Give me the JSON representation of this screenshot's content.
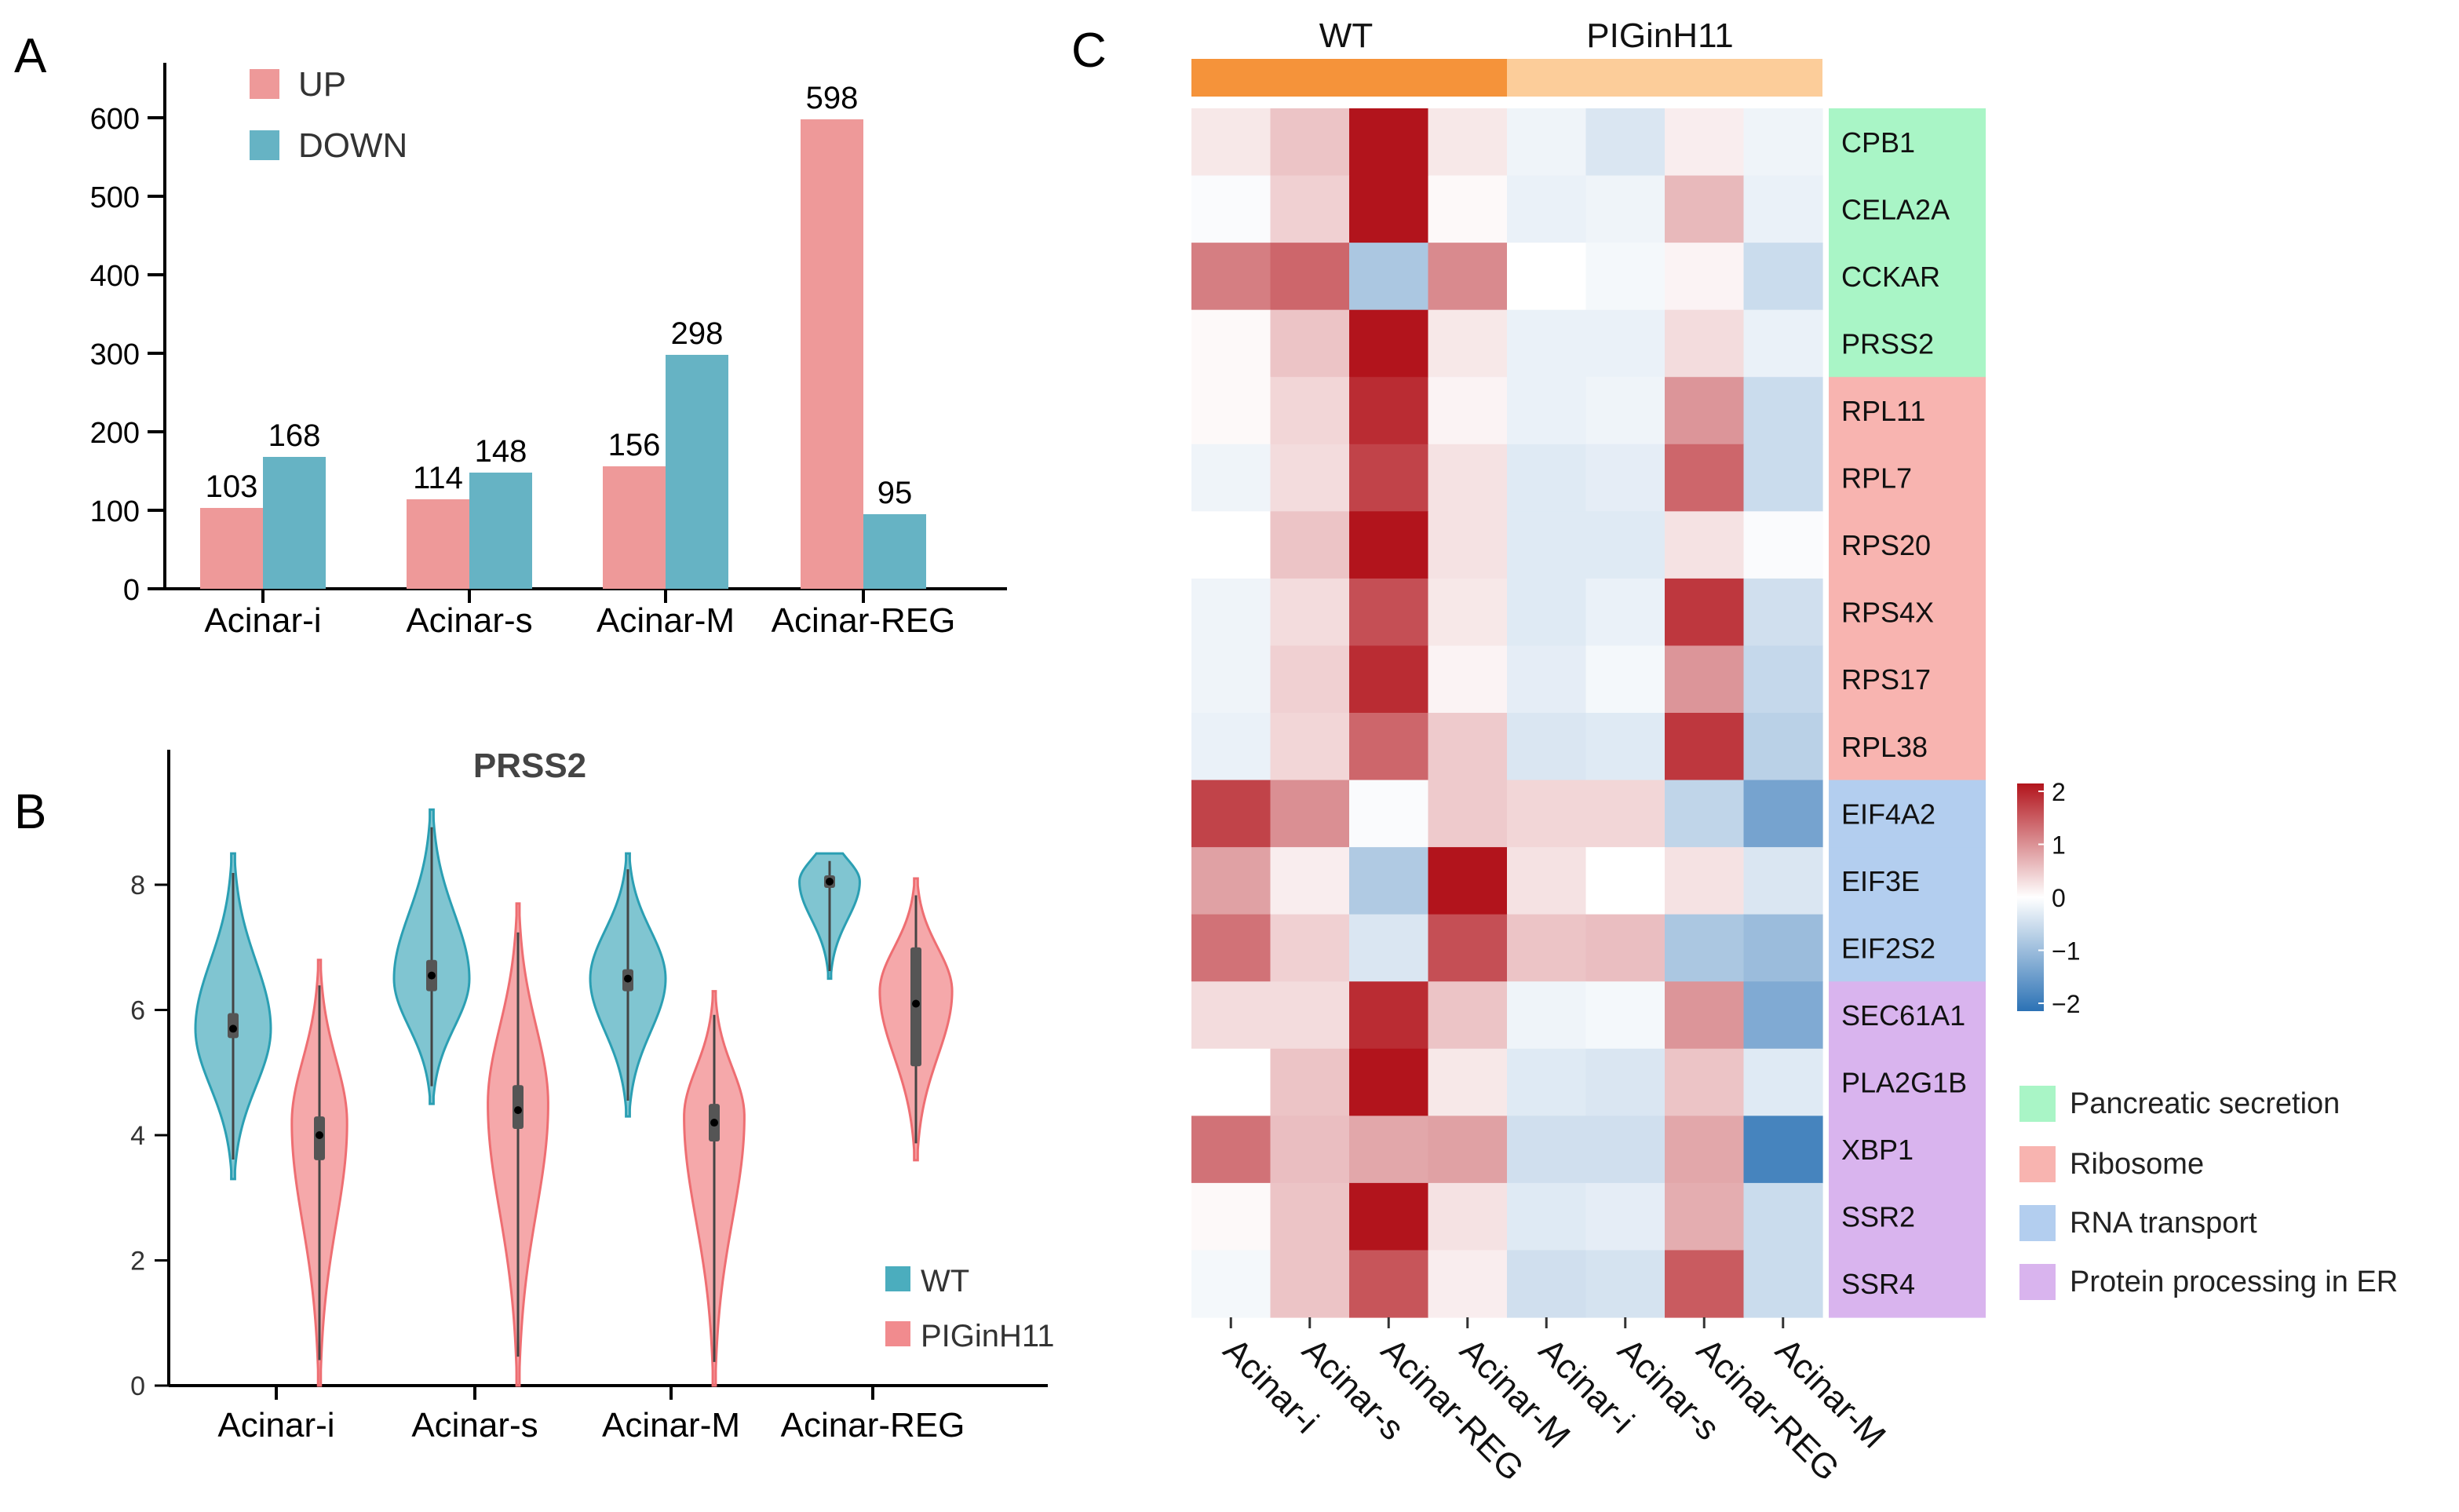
{
  "colors": {
    "up": "#ee9999",
    "down": "#66b3c4",
    "wt_violin": "#2b9fb3",
    "pig_violin": "#ee6e72",
    "wt_bar": "#f5933a",
    "pig_bar": "#fccd9a",
    "heat_high": "#b2141c",
    "heat_mid": "#ffffff",
    "heat_low": "#2c72b5",
    "pancreatic": "#a9f5c6",
    "ribosome": "#f8b4b0",
    "rna": "#b3ceef",
    "protein": "#d9b4ee"
  },
  "chart_data": [
    {
      "panel": "A",
      "type": "bar",
      "categories": [
        "Acinar-i",
        "Acinar-s",
        "Acinar-M",
        "Acinar-REG"
      ],
      "series": [
        {
          "name": "UP",
          "values": [
            103,
            114,
            156,
            598
          ],
          "labels": [
            "103",
            "114",
            "156",
            "598"
          ]
        },
        {
          "name": "DOWN",
          "values": [
            168,
            148,
            298,
            95
          ],
          "labels": [
            "168",
            "148",
            "298",
            "95"
          ]
        }
      ],
      "yticks": [
        0,
        100,
        200,
        300,
        400,
        500,
        600
      ],
      "ytick_labels": [
        "0",
        "100",
        "200",
        "300",
        "400",
        "500",
        "600"
      ],
      "ylim": [
        0,
        650
      ],
      "legend": [
        "UP",
        "DOWN"
      ],
      "legend_position": "top-left"
    },
    {
      "panel": "B",
      "type": "violin",
      "title": "PRSS2",
      "categories": [
        "Acinar-i",
        "Acinar-s",
        "Acinar-M",
        "Acinar-REG"
      ],
      "groups": [
        "WT",
        "PIGinH11"
      ],
      "ylim": [
        0,
        9.6
      ],
      "yticks": [
        0,
        2,
        4,
        6,
        8
      ],
      "ytick_labels": [
        "0",
        "2",
        "4",
        "6",
        "8"
      ],
      "violins": [
        {
          "category": "Acinar-i",
          "group": "WT",
          "min": 3.3,
          "max": 8.5,
          "median": 5.7,
          "q1": 5.55,
          "q3": 5.95,
          "mode": 5.7,
          "width": 0.75
        },
        {
          "category": "Acinar-i",
          "group": "PIGinH11",
          "min": 0.0,
          "max": 6.8,
          "median": 4.0,
          "q1": 3.6,
          "q3": 4.3,
          "mode": 4.2,
          "width": 0.55
        },
        {
          "category": "Acinar-s",
          "group": "WT",
          "min": 4.5,
          "max": 9.2,
          "median": 6.55,
          "q1": 6.3,
          "q3": 6.8,
          "mode": 6.5,
          "width": 0.75
        },
        {
          "category": "Acinar-s",
          "group": "PIGinH11",
          "min": 0.0,
          "max": 7.7,
          "median": 4.4,
          "q1": 4.1,
          "q3": 4.8,
          "mode": 4.5,
          "width": 0.6
        },
        {
          "category": "Acinar-M",
          "group": "WT",
          "min": 4.3,
          "max": 8.5,
          "median": 6.5,
          "q1": 6.3,
          "q3": 6.65,
          "mode": 6.5,
          "width": 0.75
        },
        {
          "category": "Acinar-M",
          "group": "PIGinH11",
          "min": 0.0,
          "max": 6.3,
          "median": 4.2,
          "q1": 3.9,
          "q3": 4.5,
          "mode": 4.3,
          "width": 0.6
        },
        {
          "category": "Acinar-REG",
          "group": "WT",
          "min": 6.5,
          "max": 8.5,
          "median": 8.05,
          "q1": 7.95,
          "q3": 8.15,
          "mode": 8.05,
          "width": 0.6
        },
        {
          "category": "Acinar-REG",
          "group": "PIGinH11",
          "min": 3.6,
          "max": 8.1,
          "median": 6.1,
          "q1": 5.1,
          "q3": 7.0,
          "mode": 6.3,
          "width": 0.72
        }
      ],
      "legend": [
        "WT",
        "PIGinH11"
      ],
      "legend_position": "bottom-right"
    },
    {
      "panel": "C",
      "type": "heatmap",
      "column_groups": [
        {
          "name": "WT",
          "span": 4
        },
        {
          "name": "PIGinH11",
          "span": 4
        }
      ],
      "columns": [
        "Acinar-i",
        "Acinar-s",
        "Acinar-REG",
        "Acinar-M",
        "Acinar-i",
        "Acinar-s",
        "Acinar-REG",
        "Acinar-M"
      ],
      "rows": [
        "CPB1",
        "CELA2A",
        "CCKAR",
        "PRSS2",
        "RPL11",
        "RPL7",
        "RPS20",
        "RPS4X",
        "RPS17",
        "RPL38",
        "EIF4A2",
        "EIF3E",
        "EIF2S2",
        "SEC61A1",
        "PLA2G1B",
        "XBP1",
        "SSR2",
        "SSR4"
      ],
      "values": [
        [
          0.2,
          0.5,
          2.0,
          0.2,
          -0.15,
          -0.35,
          0.15,
          -0.15
        ],
        [
          -0.05,
          0.4,
          2.0,
          0.05,
          -0.2,
          -0.15,
          0.6,
          -0.2
        ],
        [
          1.1,
          1.3,
          -0.8,
          1.0,
          0.0,
          -0.1,
          0.1,
          -0.5
        ],
        [
          0.05,
          0.5,
          2.0,
          0.2,
          -0.2,
          -0.2,
          0.3,
          -0.2
        ],
        [
          0.05,
          0.35,
          1.8,
          0.1,
          -0.2,
          -0.15,
          0.9,
          -0.5
        ],
        [
          -0.15,
          0.3,
          1.6,
          0.25,
          -0.3,
          -0.25,
          1.3,
          -0.5
        ],
        [
          0.0,
          0.5,
          2.0,
          0.25,
          -0.3,
          -0.3,
          0.25,
          -0.05
        ],
        [
          -0.15,
          0.3,
          1.5,
          0.2,
          -0.3,
          -0.2,
          1.7,
          -0.45
        ],
        [
          -0.15,
          0.4,
          1.8,
          0.1,
          -0.25,
          -0.1,
          0.9,
          -0.55
        ],
        [
          -0.2,
          0.35,
          1.3,
          0.45,
          -0.35,
          -0.3,
          1.7,
          -0.65
        ],
        [
          1.6,
          0.95,
          -0.05,
          0.45,
          0.35,
          0.35,
          -0.6,
          -1.3
        ],
        [
          0.8,
          0.15,
          -0.75,
          2.0,
          0.25,
          0.0,
          0.25,
          -0.35
        ],
        [
          1.2,
          0.4,
          -0.35,
          1.5,
          0.5,
          0.55,
          -0.8,
          -0.95
        ],
        [
          0.3,
          0.3,
          1.8,
          0.5,
          -0.15,
          -0.1,
          0.9,
          -1.2
        ],
        [
          0.0,
          0.5,
          2.0,
          0.2,
          -0.3,
          -0.35,
          0.5,
          -0.3
        ],
        [
          1.2,
          0.55,
          0.75,
          0.8,
          -0.45,
          -0.45,
          0.75,
          -1.75
        ],
        [
          0.05,
          0.5,
          2.0,
          0.25,
          -0.3,
          -0.25,
          0.7,
          -0.5
        ],
        [
          -0.1,
          0.5,
          1.45,
          0.15,
          -0.45,
          -0.4,
          1.4,
          -0.5
        ]
      ],
      "row_pathways": [
        "Pancreatic secretion",
        "Pancreatic secretion",
        "Pancreatic secretion",
        "Pancreatic secretion",
        "Ribosome",
        "Ribosome",
        "Ribosome",
        "Ribosome",
        "Ribosome",
        "Ribosome",
        "RNA transport",
        "RNA transport",
        "RNA transport",
        "Protein processing in ER",
        "Protein processing in ER",
        "Protein processing in ER",
        "Protein processing in ER",
        "Protein processing in ER"
      ],
      "color_range": [
        -2,
        2
      ],
      "colorbar_ticks": [
        2,
        1,
        0,
        -1,
        -2
      ],
      "colorbar_labels": [
        "2",
        "1",
        "0",
        "−1",
        "−2"
      ],
      "legend": [
        "Pancreatic secretion",
        "Ribosome",
        "RNA transport",
        "Protein processing in ER"
      ]
    }
  ],
  "panel_labels": {
    "a": "A",
    "b": "B",
    "c": "C"
  }
}
